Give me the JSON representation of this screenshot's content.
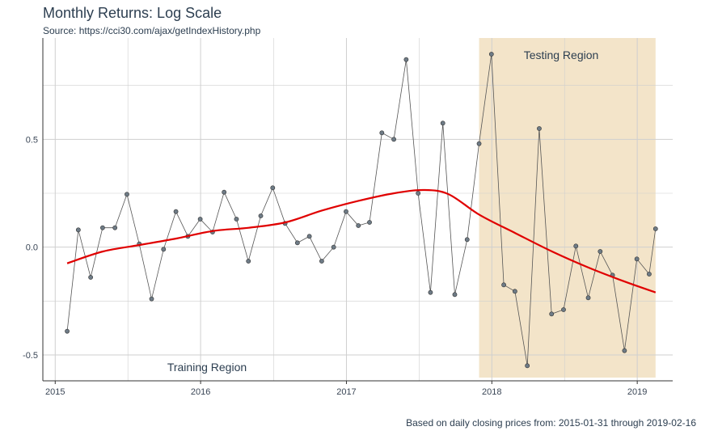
{
  "title": "Monthly Returns: Log Scale",
  "subtitle": "Source: https://cci30.com/ajax/getIndexHistory.php",
  "caption": "Based on daily closing prices from: 2015-01-31 through 2019-02-16",
  "colors": {
    "series_line": "#555555",
    "points": "#6e7b86",
    "trend": "#e00000",
    "testing_region": "#f3e4c9",
    "grid": "#cfcfcf",
    "axis": "#333333"
  },
  "chart_data": {
    "type": "line",
    "title": "Monthly Returns: Log Scale",
    "subtitle": "Source: https://cci30.com/ajax/getIndexHistory.php",
    "caption": "Based on daily closing prices from: 2015-01-31 through 2019-02-16",
    "xlabel": "",
    "ylabel": "",
    "xlim": [
      "2014-12-01",
      "2019-03-31"
    ],
    "ylim": [
      -0.62,
      0.97
    ],
    "x_ticks": [
      "2015-01-01",
      "2016-01-01",
      "2017-01-01",
      "2018-01-01",
      "2019-01-01"
    ],
    "x_tick_labels": [
      "2015",
      "2016",
      "2017",
      "2018",
      "2019"
    ],
    "y_ticks": [
      -0.5,
      0.0,
      0.5
    ],
    "y_tick_labels": [
      "-0.5",
      "0.0",
      "0.5"
    ],
    "grid": true,
    "series": [
      {
        "x": [
          "2015-01-31",
          "2015-02-28",
          "2015-03-31",
          "2015-04-30",
          "2015-05-31",
          "2015-06-30",
          "2015-07-31",
          "2015-08-31",
          "2015-09-30",
          "2015-10-31",
          "2015-11-30",
          "2015-12-31",
          "2016-01-31",
          "2016-02-29",
          "2016-03-31",
          "2016-04-30",
          "2016-05-31",
          "2016-06-30",
          "2016-07-31",
          "2016-08-31",
          "2016-09-30",
          "2016-10-31",
          "2016-11-30",
          "2016-12-31",
          "2017-01-31",
          "2017-02-28",
          "2017-03-31",
          "2017-04-30",
          "2017-05-31",
          "2017-06-30",
          "2017-07-31",
          "2017-08-31",
          "2017-09-30",
          "2017-10-31",
          "2017-11-30",
          "2017-12-31",
          "2018-01-31",
          "2018-02-28",
          "2018-03-31",
          "2018-04-30",
          "2018-05-31",
          "2018-06-30",
          "2018-07-31",
          "2018-08-31",
          "2018-09-30",
          "2018-10-31",
          "2018-11-30",
          "2018-12-31",
          "2019-01-31",
          "2019-02-16"
        ],
        "values": [
          -0.39,
          0.08,
          -0.14,
          0.09,
          0.09,
          0.245,
          0.015,
          -0.24,
          -0.01,
          0.165,
          0.05,
          0.13,
          0.07,
          0.255,
          0.13,
          -0.065,
          0.145,
          0.275,
          0.11,
          0.02,
          0.05,
          -0.065,
          0.0,
          0.165,
          0.1,
          0.115,
          0.53,
          0.5,
          0.87,
          0.25,
          -0.21,
          0.575,
          -0.22,
          0.035,
          0.48,
          0.895,
          -0.175,
          -0.205,
          -0.55,
          0.55,
          -0.31,
          -0.29,
          0.005,
          -0.235,
          -0.02,
          -0.13,
          -0.48,
          -0.055,
          -0.125,
          0.085
        ]
      },
      {
        "type": "smooth",
        "x": [
          "2015-01-31",
          "2015-05-01",
          "2015-08-01",
          "2015-11-01",
          "2016-02-01",
          "2016-05-01",
          "2016-08-01",
          "2016-11-01",
          "2017-02-01",
          "2017-05-01",
          "2017-07-15",
          "2017-09-15",
          "2017-12-01",
          "2018-03-01",
          "2018-06-01",
          "2018-09-01",
          "2018-12-01",
          "2019-02-16"
        ],
        "values": [
          -0.075,
          -0.02,
          0.01,
          0.04,
          0.075,
          0.09,
          0.115,
          0.17,
          0.215,
          0.25,
          0.265,
          0.245,
          0.15,
          0.065,
          -0.02,
          -0.095,
          -0.16,
          -0.21
        ]
      }
    ],
    "regions": [
      {
        "label": "Training Region",
        "start": "2015-01-31",
        "end": "2017-11-30"
      },
      {
        "label": "Testing Region",
        "start": "2017-11-30",
        "end": "2019-02-16"
      }
    ]
  }
}
